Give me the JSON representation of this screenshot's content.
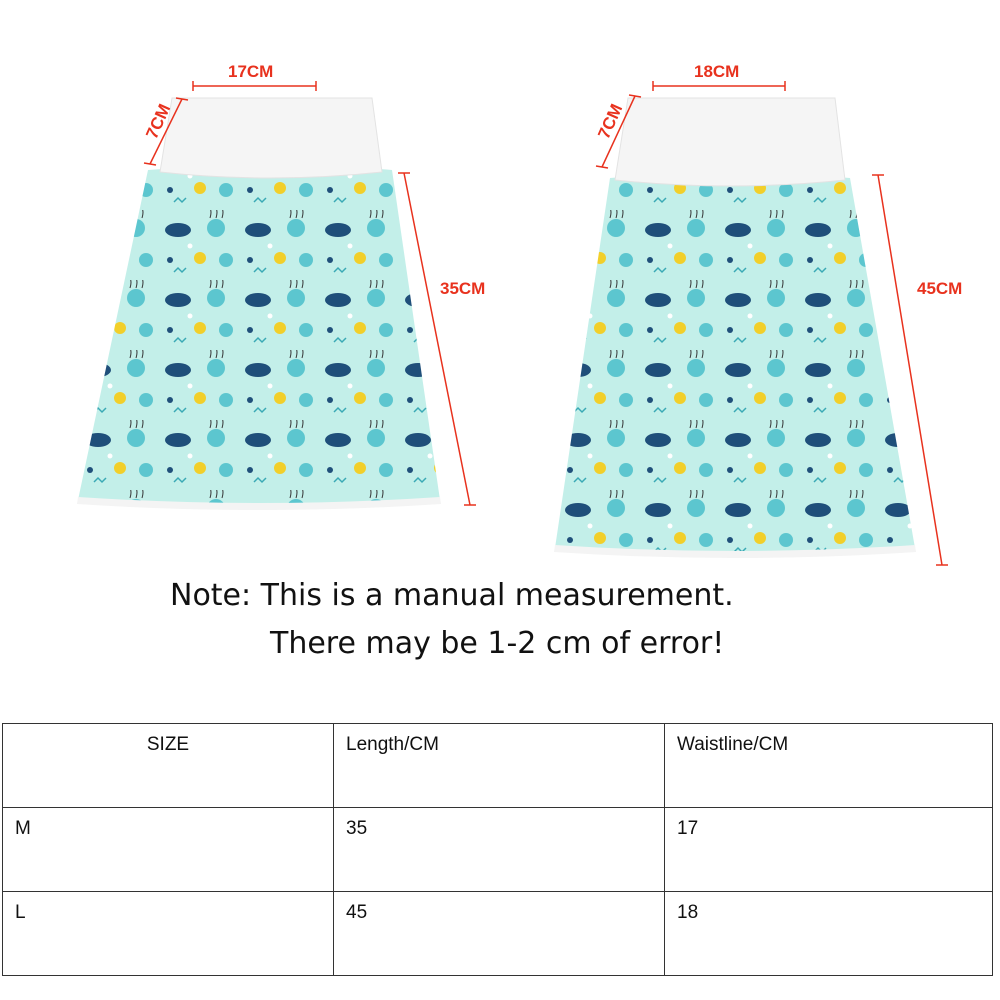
{
  "products": [
    {
      "size": "M",
      "waist_label": "17CM",
      "band_label": "7CM",
      "length_label": "35CM"
    },
    {
      "size": "L",
      "waist_label": "18CM",
      "band_label": "7CM",
      "length_label": "45CM"
    }
  ],
  "colors": {
    "measure": "#e8321e",
    "fabric": "#bfeee8",
    "whale": "#1f4f7a",
    "jelly": "#5cc6cf",
    "accent": "#f2cf2a"
  },
  "note": {
    "line1": "Note: This is a manual measurement.",
    "line2": "There may be 1-2 cm of error!"
  },
  "table": {
    "headers": [
      "SIZE",
      "Length/CM",
      "Waistline/CM"
    ],
    "rows": [
      [
        "M",
        "35",
        "17"
      ],
      [
        "L",
        "45",
        "18"
      ]
    ]
  }
}
